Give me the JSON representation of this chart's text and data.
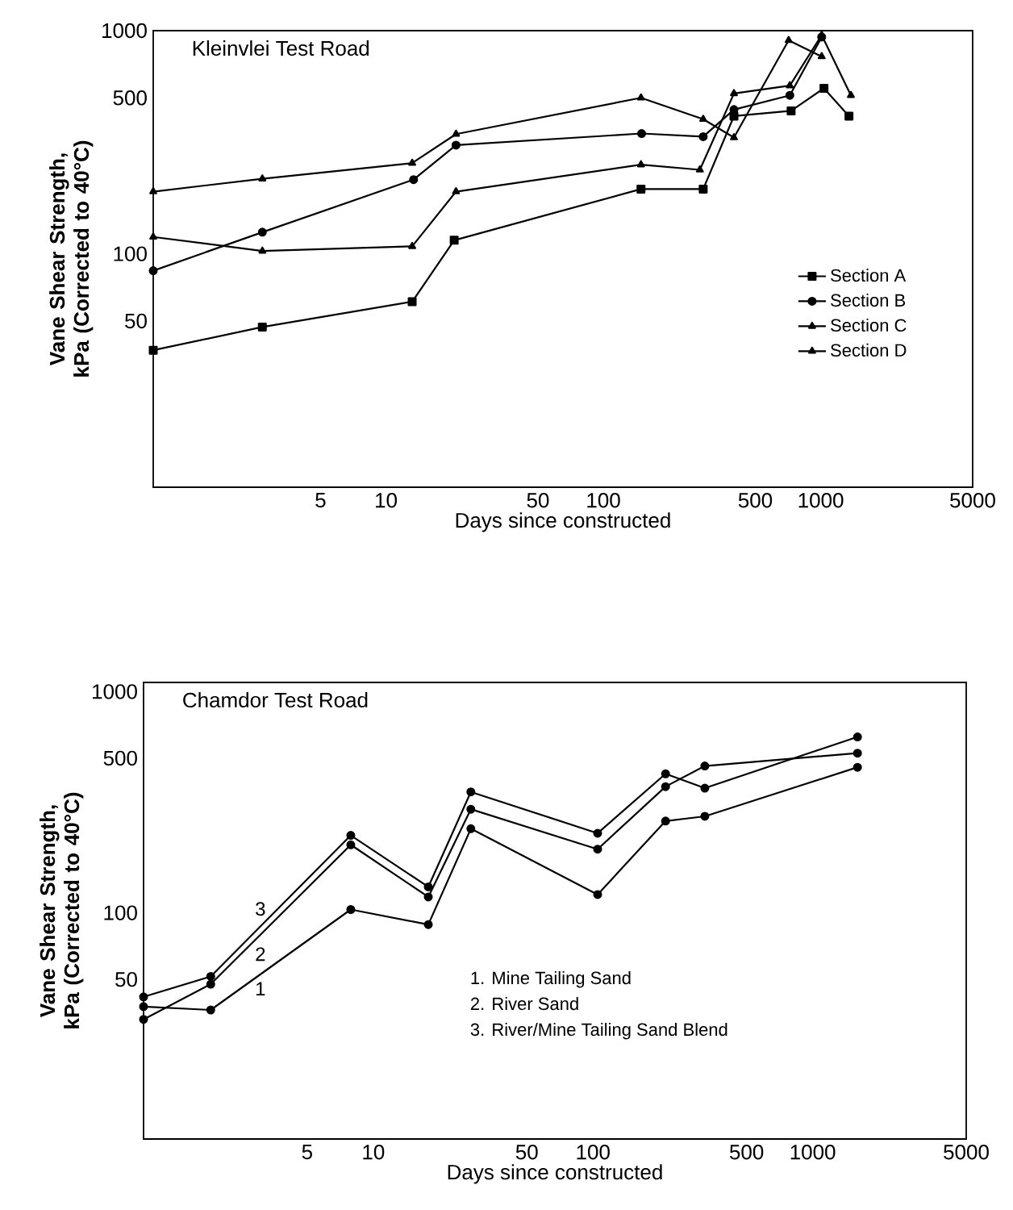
{
  "chart_data": [
    {
      "type": "line",
      "title": "Kleinvlei Test Road",
      "xlabel": "Days since constructed",
      "ylabel": "Vane Shear Strength, kPa (Corrected to 40°C)",
      "log": "xy",
      "xlim": [
        0.85,
        5000
      ],
      "ylim": [
        9,
        1000
      ],
      "xticks": [
        5,
        10,
        50,
        100,
        500,
        1000,
        5000
      ],
      "yticks": [
        50,
        100,
        500,
        1000
      ],
      "legend": "right",
      "series": [
        {
          "name": "Section A",
          "color": "#000000",
          "marker": "square",
          "x": [
            0.85,
            2.7,
            13.2,
            20.6,
            149,
            288,
            399,
            731,
            1035,
            1349
          ],
          "values": [
            37,
            47,
            61,
            115,
            195,
            195,
            414,
            437,
            552,
            414
          ]
        },
        {
          "name": "Section B",
          "color": "#000000",
          "marker": "circle",
          "x": [
            0.85,
            2.7,
            13.4,
            21,
            150,
            288,
            399,
            721,
            1010
          ],
          "values": [
            84,
            125,
            215,
            307,
            346,
            335,
            443,
            513,
            936
          ]
        },
        {
          "name": "Section C",
          "color": "#000000",
          "marker": "triangle",
          "x": [
            0.85,
            2.7,
            13.2,
            21,
            149,
            278,
            399,
            721,
            1010,
            1377
          ],
          "values": [
            119,
            103,
            108,
            190,
            251,
            238,
            523,
            567,
            955,
            513
          ]
        },
        {
          "name": "Section D",
          "color": "#000000",
          "marker": "triangle",
          "x": [
            0.85,
            2.7,
            13.2,
            21,
            149,
            288,
            399,
            712,
            1010
          ],
          "values": [
            190,
            217,
            255,
            344,
            500,
            401,
            332,
            905,
            766
          ]
        }
      ]
    },
    {
      "type": "line",
      "title": "Chamdor Test Road",
      "xlabel": "Days since constructed",
      "ylabel": "Vane Shear Strength, kPa (Corrected to 40°C)",
      "log": "xy",
      "xlim": [
        0.9,
        5000
      ],
      "ylim": [
        9.5,
        1100
      ],
      "xticks": [
        5,
        10,
        50,
        100,
        500,
        1000,
        5000
      ],
      "yticks": [
        50,
        100,
        500,
        1000
      ],
      "marker": "circle",
      "annotations": [
        "3",
        "2",
        "1",
        "1. Mine Tailing Sand",
        "2. River Sand",
        "3. River/Mine Tailing Sand Blend"
      ],
      "series": [
        {
          "color": "#000000",
          "x": [
            0.9,
            1.82,
            7.9,
            17.8,
            27.8,
            105,
            214,
            323,
            1600
          ],
          "values": [
            37.7,
            36.4,
            103.5,
            88.5,
            240,
            121,
            260,
            273,
            455
          ]
        },
        {
          "color": "#000000",
          "x": [
            0.9,
            1.82,
            7.9,
            17.8,
            27.8,
            105,
            214,
            323,
            1600
          ],
          "values": [
            33.0,
            47.6,
            203,
            118,
            294,
            194,
            372,
            461,
            527
          ]
        },
        {
          "color": "#000000",
          "x": [
            0.9,
            1.82,
            7.9,
            17.8,
            27.8,
            105,
            214,
            323,
            1600
          ],
          "values": [
            41.7,
            51.6,
            224,
            131,
            352,
            229,
            425,
            366,
            624
          ]
        }
      ]
    }
  ]
}
